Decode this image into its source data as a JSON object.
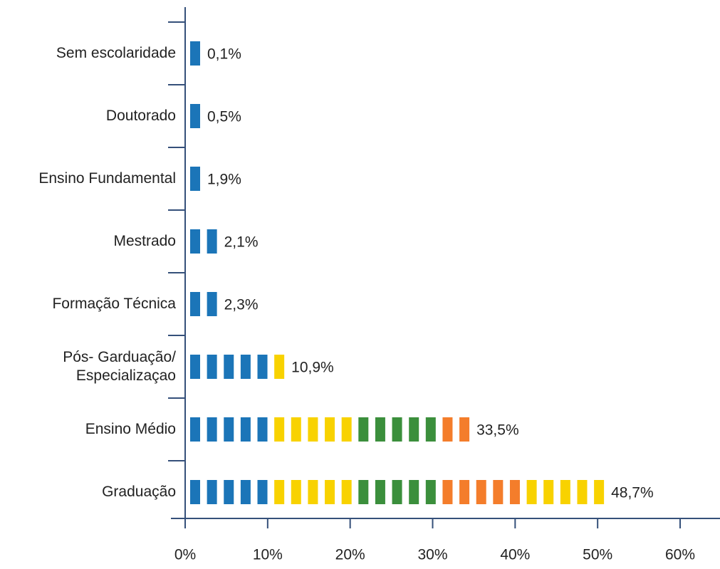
{
  "chart_data": {
    "type": "pictogram-bar",
    "orientation": "horizontal",
    "categories": [
      "Sem escolaridade",
      "Doutorado",
      "Ensino Fundamental",
      "Mestrado",
      "Formação Técnica",
      "Pós- Garduação/\nEspecializaçao",
      "Ensino Médio",
      "Graduação"
    ],
    "values": [
      0.1,
      0.5,
      1.9,
      2.1,
      2.3,
      10.9,
      33.5,
      48.7
    ],
    "value_labels": [
      "0,1%",
      "0,5%",
      "1,9%",
      "2,1%",
      "2,3%",
      "10,9%",
      "33,5%",
      "48,7%"
    ],
    "xlim": [
      0,
      60
    ],
    "xticks": [
      {
        "value": 0,
        "label": "0%"
      },
      {
        "value": 10,
        "label": "10%"
      },
      {
        "value": 20,
        "label": "20%"
      },
      {
        "value": 30,
        "label": "30%"
      },
      {
        "value": 40,
        "label": "40%"
      },
      {
        "value": 50,
        "label": "50%"
      },
      {
        "value": 60,
        "label": "60%"
      }
    ],
    "band_colors": [
      "#1b75b8",
      "#f8d200",
      "#3b8f3c",
      "#f47d2b",
      "#f8d200"
    ],
    "axis_color": "#35507a"
  }
}
